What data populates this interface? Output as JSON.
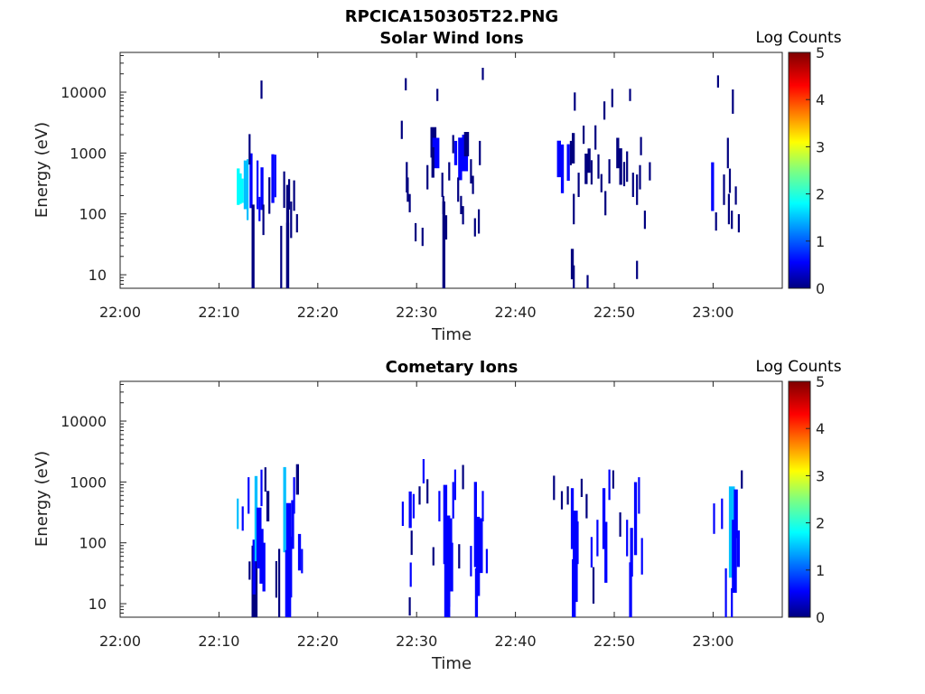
{
  "figure": {
    "title": "RPCICA150305T22.PNG"
  },
  "colors": {
    "c0": "#00007f",
    "c1": "#0000ff",
    "c2": "#00bfff",
    "c3": "#00ffff"
  },
  "chart_data": [
    {
      "type": "heatmap",
      "title": "Solar Wind Ions",
      "xlabel": "Time",
      "ylabel": "Energy (eV)",
      "x_ticks": [
        "22:00",
        "22:10",
        "22:20",
        "22:30",
        "22:40",
        "22:50",
        "23:00"
      ],
      "x_range_min": [
        0,
        67
      ],
      "y_scale": "log",
      "y_ticks": [
        "10",
        "100",
        "1000",
        "10000"
      ],
      "y_range": [
        6,
        45000
      ],
      "colorbar": {
        "label": "Log Counts",
        "range": [
          0,
          5
        ],
        "ticks": [
          "0",
          "1",
          "2",
          "3",
          "4",
          "5"
        ]
      },
      "cells": [
        [
          11.8,
          280,
          0.6,
          1.6,
          0.3
        ],
        [
          12.0,
          260,
          0.5,
          1.5,
          0.3
        ],
        [
          12.2,
          240,
          0.4,
          1.4,
          0.3
        ],
        [
          12.5,
          300,
          0.8,
          1.2,
          0.3
        ],
        [
          12.8,
          250,
          1.0,
          0.8,
          0.2
        ],
        [
          13.1,
          350,
          0.9,
          0.5,
          0.3
        ],
        [
          13.0,
          1150,
          0.5,
          0.15,
          0.2
        ],
        [
          13.3,
          8,
          2.5,
          0.2,
          0.3
        ],
        [
          13.8,
          300,
          0.8,
          0.4,
          0.2
        ],
        [
          14.2,
          260,
          0.7,
          0.6,
          0.3
        ],
        [
          14.0,
          120,
          0.4,
          0.3,
          0.2
        ],
        [
          14.4,
          80,
          0.5,
          0.2,
          0.2
        ],
        [
          14.2,
          11000,
          0.3,
          0.1,
          0.2
        ],
        [
          15.0,
          200,
          0.6,
          0.2,
          0.2
        ],
        [
          15.3,
          380,
          0.8,
          0.3,
          0.3
        ],
        [
          15.6,
          420,
          0.7,
          0.4,
          0.2
        ],
        [
          16.5,
          250,
          0.6,
          0.2,
          0.2
        ],
        [
          16.2,
          9,
          1.7,
          0.2,
          0.2
        ],
        [
          16.8,
          30,
          2.0,
          0.2,
          0.3
        ],
        [
          16.8,
          9,
          1.8,
          0.2,
          0.3
        ],
        [
          17.2,
          80,
          0.6,
          0.2,
          0.2
        ],
        [
          17.0,
          210,
          0.5,
          0.2,
          0.2
        ],
        [
          17.8,
          70,
          0.3,
          0.1,
          0.2
        ],
        [
          17.5,
          200,
          0.5,
          0.2,
          0.2
        ],
        [
          28.4,
          2400,
          0.3,
          0.1,
          0.2
        ],
        [
          28.8,
          13500,
          0.2,
          0.1,
          0.2
        ],
        [
          28.9,
          400,
          0.5,
          0.1,
          0.2
        ],
        [
          29.0,
          250,
          0.4,
          0.1,
          0.2
        ],
        [
          29.2,
          150,
          0.3,
          0.1,
          0.2
        ],
        [
          29.8,
          50,
          0.3,
          0.1,
          0.2
        ],
        [
          30.5,
          42,
          0.3,
          0.1,
          0.2
        ],
        [
          31.0,
          400,
          0.4,
          0.1,
          0.2
        ],
        [
          31.4,
          1500,
          0.5,
          0.2,
          0.6
        ],
        [
          31.6,
          1000,
          0.5,
          0.4,
          0.7
        ],
        [
          31.5,
          700,
          0.5,
          0.1,
          0.3
        ],
        [
          32.0,
          9000,
          0.2,
          0.1,
          0.2
        ],
        [
          32.5,
          300,
          0.4,
          0.1,
          0.2
        ],
        [
          32.6,
          140,
          0.3,
          0.1,
          0.2
        ],
        [
          32.9,
          60,
          0.4,
          0.1,
          0.2
        ],
        [
          32.6,
          9,
          2.5,
          0.2,
          0.3
        ],
        [
          33.2,
          500,
          0.3,
          0.1,
          0.2
        ],
        [
          33.6,
          1400,
          0.3,
          0.1,
          0.2
        ],
        [
          33.8,
          1000,
          0.4,
          0.3,
          0.3
        ],
        [
          34.2,
          800,
          0.7,
          0.6,
          0.4
        ],
        [
          34.6,
          1000,
          0.6,
          0.5,
          0.6
        ],
        [
          34.8,
          1400,
          0.4,
          0.2,
          0.5
        ],
        [
          34.1,
          250,
          0.4,
          0.1,
          0.2
        ],
        [
          34.4,
          140,
          0.3,
          0.1,
          0.2
        ],
        [
          34.6,
          95,
          0.3,
          0.1,
          0.2
        ],
        [
          35.4,
          500,
          0.4,
          0.1,
          0.2
        ],
        [
          35.6,
          300,
          0.3,
          0.1,
          0.2
        ],
        [
          35.8,
          60,
          0.3,
          0.1,
          0.2
        ],
        [
          36.2,
          75,
          0.4,
          0.1,
          0.2
        ],
        [
          36.3,
          1000,
          0.4,
          0.1,
          0.2
        ],
        [
          36.6,
          20000,
          0.2,
          0.1,
          0.2
        ],
        [
          44.2,
          800,
          0.6,
          0.7,
          0.4
        ],
        [
          44.6,
          550,
          0.8,
          0.6,
          0.3
        ],
        [
          45.2,
          700,
          0.6,
          0.5,
          0.3
        ],
        [
          45.5,
          1000,
          0.4,
          0.2,
          0.2
        ],
        [
          45.7,
          1200,
          0.5,
          0.2,
          0.3
        ],
        [
          45.9,
          7000,
          0.3,
          0.1,
          0.2
        ],
        [
          45.8,
          120,
          0.5,
          0.1,
          0.2
        ],
        [
          45.6,
          15,
          0.5,
          0.1,
          0.3
        ],
        [
          45.8,
          9,
          0.4,
          0.1,
          0.2
        ],
        [
          46.3,
          300,
          0.4,
          0.1,
          0.2
        ],
        [
          46.8,
          2000,
          0.3,
          0.1,
          0.2
        ],
        [
          47.0,
          550,
          0.5,
          0.2,
          0.3
        ],
        [
          47.3,
          750,
          0.4,
          0.2,
          0.3
        ],
        [
          47.6,
          480,
          0.4,
          0.2,
          0.2
        ],
        [
          47.2,
          7,
          0.3,
          0.1,
          0.2
        ],
        [
          48.0,
          1800,
          0.4,
          0.1,
          0.2
        ],
        [
          48.3,
          600,
          0.4,
          0.2,
          0.2
        ],
        [
          48.6,
          320,
          0.3,
          0.1,
          0.2
        ],
        [
          48.9,
          5000,
          0.3,
          0.1,
          0.2
        ],
        [
          49.0,
          150,
          0.4,
          0.1,
          0.2
        ],
        [
          49.4,
          500,
          0.4,
          0.2,
          0.2
        ],
        [
          49.7,
          8000,
          0.3,
          0.1,
          0.2
        ],
        [
          50.2,
          1000,
          0.5,
          0.2,
          0.3
        ],
        [
          50.5,
          600,
          0.6,
          0.2,
          0.3
        ],
        [
          50.9,
          450,
          0.4,
          0.1,
          0.2
        ],
        [
          51.2,
          600,
          0.5,
          0.2,
          0.2
        ],
        [
          51.5,
          9000,
          0.2,
          0.1,
          0.2
        ],
        [
          51.8,
          300,
          0.4,
          0.1,
          0.2
        ],
        [
          52.2,
          250,
          0.5,
          0.1,
          0.2
        ],
        [
          52.6,
          1300,
          0.3,
          0.1,
          0.2
        ],
        [
          52.5,
          400,
          0.4,
          0.1,
          0.2
        ],
        [
          52.2,
          12,
          0.3,
          0.1,
          0.2
        ],
        [
          53.0,
          80,
          0.3,
          0.1,
          0.2
        ],
        [
          53.5,
          500,
          0.3,
          0.1,
          0.2
        ],
        [
          59.8,
          280,
          0.8,
          0.5,
          0.3
        ],
        [
          60.4,
          15000,
          0.2,
          0.1,
          0.2
        ],
        [
          60.2,
          75,
          0.3,
          0.1,
          0.2
        ],
        [
          61.0,
          250,
          0.5,
          0.1,
          0.2
        ],
        [
          61.4,
          1000,
          0.5,
          0.1,
          0.2
        ],
        [
          61.6,
          350,
          0.4,
          0.1,
          0.2
        ],
        [
          61.5,
          120,
          0.5,
          0.1,
          0.2
        ],
        [
          61.9,
          7000,
          0.4,
          0.1,
          0.2
        ],
        [
          61.8,
          80,
          0.3,
          0.1,
          0.2
        ],
        [
          62.2,
          200,
          0.3,
          0.1,
          0.2
        ],
        [
          62.5,
          70,
          0.3,
          0.1,
          0.2
        ]
      ]
    },
    {
      "type": "heatmap",
      "title": "Cometary Ions",
      "xlabel": "Time",
      "ylabel": "Energy (eV)",
      "x_ticks": [
        "22:00",
        "22:10",
        "22:20",
        "22:30",
        "22:40",
        "22:50",
        "23:00"
      ],
      "x_range_min": [
        0,
        67
      ],
      "y_scale": "log",
      "y_ticks": [
        "10",
        "100",
        "1000",
        "10000"
      ],
      "y_range": [
        6,
        45000
      ],
      "colorbar": {
        "label": "Log Counts",
        "range": [
          0,
          5
        ],
        "ticks": [
          "0",
          "1",
          "2",
          "3",
          "4",
          "5"
        ]
      },
      "cells": [
        [
          11.8,
          300,
          0.5,
          0.8,
          0.2
        ],
        [
          12.3,
          250,
          0.4,
          0.5,
          0.2
        ],
        [
          12.9,
          600,
          0.6,
          0.6,
          0.2
        ],
        [
          13.3,
          9,
          2.0,
          0.2,
          0.6
        ],
        [
          13.4,
          40,
          0.9,
          0.4,
          0.3
        ],
        [
          13.6,
          250,
          1.4,
          0.8,
          0.3
        ],
        [
          13.8,
          120,
          1.0,
          0.5,
          0.5
        ],
        [
          14.1,
          60,
          0.9,
          0.6,
          0.4
        ],
        [
          14.4,
          40,
          0.8,
          0.4,
          0.3
        ],
        [
          14.2,
          800,
          0.6,
          0.3,
          0.2
        ],
        [
          14.6,
          1100,
          0.4,
          0.2,
          0.2
        ],
        [
          14.8,
          400,
          0.5,
          0.2,
          0.3
        ],
        [
          13.0,
          35,
          0.3,
          0.2,
          0.2
        ],
        [
          15.7,
          25,
          0.6,
          0.2,
          0.2
        ],
        [
          16.0,
          20,
          1.2,
          0.2,
          0.2
        ],
        [
          16.5,
          350,
          1.4,
          0.8,
          0.3
        ],
        [
          16.8,
          80,
          1.5,
          0.6,
          0.5
        ],
        [
          16.7,
          12,
          1.6,
          0.4,
          0.6
        ],
        [
          17.0,
          40,
          1.0,
          0.6,
          0.4
        ],
        [
          17.3,
          200,
          0.8,
          0.5,
          0.3
        ],
        [
          17.5,
          600,
          0.6,
          0.3,
          0.2
        ],
        [
          17.8,
          1100,
          0.5,
          0.2,
          0.3
        ],
        [
          18.0,
          70,
          0.6,
          0.5,
          0.3
        ],
        [
          18.3,
          50,
          0.4,
          0.3,
          0.2
        ],
        [
          28.5,
          300,
          0.4,
          0.3,
          0.2
        ],
        [
          29.2,
          350,
          0.6,
          0.4,
          0.3
        ],
        [
          29.6,
          400,
          0.4,
          0.3,
          0.2
        ],
        [
          29.4,
          100,
          0.4,
          0.2,
          0.2
        ],
        [
          29.3,
          30,
          0.4,
          0.3,
          0.2
        ],
        [
          29.2,
          9,
          0.3,
          0.2,
          0.2
        ],
        [
          30.2,
          600,
          0.3,
          0.2,
          0.2
        ],
        [
          30.6,
          1500,
          0.4,
          0.3,
          0.2
        ],
        [
          31.0,
          700,
          0.4,
          0.2,
          0.2
        ],
        [
          31.6,
          60,
          0.3,
          0.2,
          0.2
        ],
        [
          32.2,
          400,
          0.5,
          0.3,
          0.2
        ],
        [
          32.7,
          200,
          1.3,
          0.7,
          0.4
        ],
        [
          32.9,
          50,
          1.5,
          0.7,
          0.5
        ],
        [
          32.8,
          10,
          1.4,
          0.5,
          0.6
        ],
        [
          33.2,
          80,
          1.0,
          0.5,
          0.4
        ],
        [
          33.4,
          40,
          0.8,
          0.5,
          0.3
        ],
        [
          33.6,
          500,
          0.6,
          0.3,
          0.2
        ],
        [
          33.8,
          900,
          0.5,
          0.3,
          0.2
        ],
        [
          34.2,
          60,
          0.4,
          0.2,
          0.2
        ],
        [
          34.6,
          1200,
          0.4,
          0.2,
          0.2
        ],
        [
          35.4,
          50,
          0.5,
          0.3,
          0.2
        ],
        [
          35.8,
          200,
          1.4,
          0.7,
          0.3
        ],
        [
          36.0,
          60,
          1.3,
          0.6,
          0.4
        ],
        [
          35.9,
          12,
          1.0,
          0.4,
          0.3
        ],
        [
          36.3,
          90,
          0.9,
          0.5,
          0.4
        ],
        [
          36.6,
          400,
          0.5,
          0.3,
          0.2
        ],
        [
          37.0,
          50,
          0.4,
          0.3,
          0.2
        ],
        [
          43.8,
          800,
          0.4,
          0.2,
          0.2
        ],
        [
          44.6,
          500,
          0.3,
          0.2,
          0.2
        ],
        [
          45.2,
          600,
          0.3,
          0.2,
          0.2
        ],
        [
          45.6,
          250,
          1.0,
          0.6,
          0.3
        ],
        [
          45.8,
          60,
          1.5,
          0.7,
          0.5
        ],
        [
          45.7,
          12,
          1.3,
          0.5,
          0.4
        ],
        [
          46.1,
          100,
          0.7,
          0.4,
          0.3
        ],
        [
          46.6,
          800,
          0.3,
          0.2,
          0.2
        ],
        [
          47.1,
          400,
          0.4,
          0.2,
          0.2
        ],
        [
          47.6,
          70,
          0.5,
          0.3,
          0.2
        ],
        [
          47.8,
          20,
          0.6,
          0.2,
          0.2
        ],
        [
          48.2,
          120,
          0.6,
          0.3,
          0.2
        ],
        [
          48.8,
          250,
          1.0,
          0.6,
          0.3
        ],
        [
          49.0,
          70,
          1.0,
          0.5,
          0.3
        ],
        [
          49.4,
          900,
          0.5,
          0.3,
          0.2
        ],
        [
          49.8,
          1100,
          0.3,
          0.2,
          0.2
        ],
        [
          50.5,
          200,
          0.4,
          0.2,
          0.2
        ],
        [
          51.2,
          120,
          0.6,
          0.4,
          0.2
        ],
        [
          51.6,
          70,
          0.8,
          0.5,
          0.3
        ],
        [
          51.5,
          12,
          1.2,
          0.4,
          0.3
        ],
        [
          52.0,
          250,
          1.2,
          0.6,
          0.3
        ],
        [
          52.4,
          600,
          0.6,
          0.3,
          0.2
        ],
        [
          52.7,
          60,
          0.6,
          0.3,
          0.2
        ],
        [
          60.0,
          250,
          0.5,
          0.3,
          0.2
        ],
        [
          60.8,
          300,
          0.5,
          0.3,
          0.2
        ],
        [
          61.2,
          12,
          1.0,
          0.3,
          0.2
        ],
        [
          61.6,
          150,
          1.5,
          0.8,
          0.6
        ],
        [
          61.9,
          60,
          1.2,
          0.7,
          0.5
        ],
        [
          62.1,
          300,
          0.8,
          0.5,
          0.4
        ],
        [
          62.4,
          80,
          0.6,
          0.4,
          0.3
        ],
        [
          62.8,
          1100,
          0.3,
          0.2,
          0.2
        ],
        [
          61.8,
          9,
          0.6,
          0.3,
          0.2
        ]
      ]
    }
  ]
}
